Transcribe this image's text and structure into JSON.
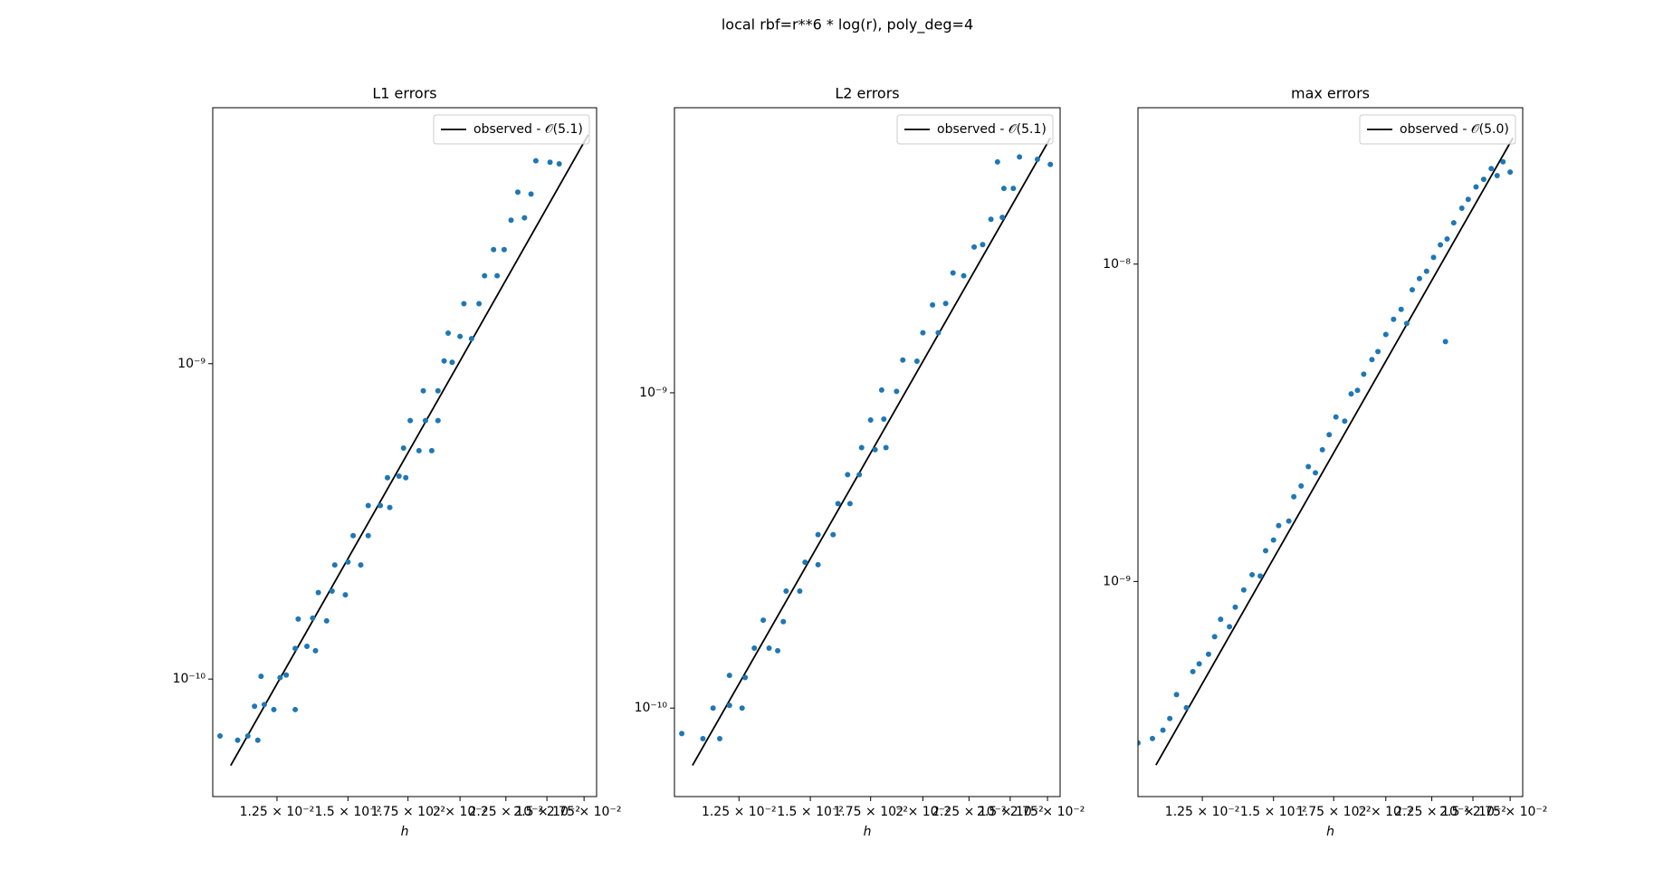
{
  "title": "local rbf=r**6 * log(r), poly_deg=4",
  "chart_data": [
    {
      "type": "scatter",
      "title": "L1 errors",
      "xlabel": "h",
      "xscale": "log",
      "yscale": "log",
      "xlim": [
        0.0106,
        0.0284
      ],
      "ylim": [
        4.24e-11,
        6.48e-09
      ],
      "xticks": [
        {
          "value": 0.0125,
          "label": "1.25 × 10⁻²"
        },
        {
          "value": 0.015,
          "label": "1.5 × 10⁻²"
        },
        {
          "value": 0.0175,
          "label": "1.75 × 10⁻²"
        },
        {
          "value": 0.02,
          "label": "2 × 10⁻²"
        },
        {
          "value": 0.0225,
          "label": "2.25 × 10⁻²"
        },
        {
          "value": 0.025,
          "label": "2.5 × 10⁻²"
        },
        {
          "value": 0.0275,
          "label": "2.75 × 10⁻²"
        }
      ],
      "yticks": [
        {
          "value": 1e-10,
          "label": "10⁻¹⁰"
        },
        {
          "value": 1e-09,
          "label": "10⁻⁹"
        }
      ],
      "legend": "upper right",
      "series": [
        {
          "name": "observed - 𝒪(5.1)",
          "style": "line",
          "color": "#000000",
          "x": [
            0.0111,
            0.0278
          ],
          "values": [
            5.32e-11,
            5.32e-09
          ]
        },
        {
          "style": "markers",
          "color": "#1f77b4",
          "x": [
            0.0108,
            0.0113,
            0.0116,
            0.0119,
            0.0118,
            0.0121,
            0.0124,
            0.012,
            0.0126,
            0.0128,
            0.0131,
            0.0131,
            0.0135,
            0.0138,
            0.0132,
            0.0137,
            0.0142,
            0.0139,
            0.0144,
            0.0149,
            0.0145,
            0.015,
            0.0155,
            0.0152,
            0.0158,
            0.0158,
            0.0163,
            0.0167,
            0.0166,
            0.0171,
            0.0174,
            0.0173,
            0.018,
            0.0186,
            0.0176,
            0.0183,
            0.0189,
            0.0182,
            0.0189,
            0.0192,
            0.0196,
            0.0194,
            0.02,
            0.0206,
            0.0202,
            0.021,
            0.0213,
            0.022,
            0.0218,
            0.0224,
            0.0228,
            0.0236,
            0.0232,
            0.024,
            0.0243,
            0.0252,
            0.0258
          ],
          "values": [
            6.6e-11,
            6.4e-11,
            6.6e-11,
            6.4e-11,
            8.2e-11,
            8.3e-11,
            8e-11,
            1.02e-10,
            1.01e-10,
            1.03e-10,
            8e-11,
            1.25e-10,
            1.27e-10,
            1.23e-10,
            1.55e-10,
            1.56e-10,
            1.53e-10,
            1.88e-10,
            1.9e-10,
            1.85e-10,
            2.3e-10,
            2.35e-10,
            2.3e-10,
            2.85e-10,
            2.85e-10,
            3.55e-10,
            3.55e-10,
            3.5e-10,
            4.35e-10,
            4.4e-10,
            4.35e-10,
            5.4e-10,
            5.3e-10,
            5.3e-10,
            6.6e-10,
            6.6e-10,
            6.6e-10,
            8.2e-10,
            8.2e-10,
            1.02e-09,
            1.01e-09,
            1.25e-09,
            1.22e-09,
            1.2e-09,
            1.55e-09,
            1.55e-09,
            1.9e-09,
            1.9e-09,
            2.3e-09,
            2.3e-09,
            2.85e-09,
            2.9e-09,
            3.5e-09,
            3.45e-09,
            4.4e-09,
            4.35e-09,
            4.3e-09
          ]
        }
      ]
    },
    {
      "type": "scatter",
      "title": "L2 errors",
      "xlabel": "h",
      "xscale": "log",
      "yscale": "log",
      "xlim": [
        0.0106,
        0.0284
      ],
      "ylim": [
        5.24e-11,
        8.02e-09
      ],
      "xticks": [
        {
          "value": 0.0125,
          "label": "1.25 × 10⁻²"
        },
        {
          "value": 0.015,
          "label": "1.5 × 10⁻²"
        },
        {
          "value": 0.0175,
          "label": "1.75 × 10⁻²"
        },
        {
          "value": 0.02,
          "label": "2 × 10⁻²"
        },
        {
          "value": 0.0225,
          "label": "2.25 × 10⁻²"
        },
        {
          "value": 0.025,
          "label": "2.5 × 10⁻²"
        },
        {
          "value": 0.0275,
          "label": "2.75 × 10⁻²"
        }
      ],
      "yticks": [
        {
          "value": 1e-10,
          "label": "10⁻¹⁰"
        },
        {
          "value": 1e-09,
          "label": "10⁻⁹"
        }
      ],
      "legend": "upper right",
      "series": [
        {
          "name": "observed - 𝒪(5.1)",
          "style": "line",
          "color": "#000000",
          "x": [
            0.0111,
            0.0277
          ],
          "values": [
            6.58e-11,
            6.43e-09
          ]
        },
        {
          "style": "markers",
          "color": "#1f77b4",
          "x": [
            0.0108,
            0.0114,
            0.0119,
            0.0117,
            0.0122,
            0.0126,
            0.0122,
            0.0127,
            0.013,
            0.0135,
            0.0138,
            0.0133,
            0.014,
            0.0141,
            0.0146,
            0.0148,
            0.0153,
            0.0153,
            0.0159,
            0.0161,
            0.0166,
            0.0165,
            0.017,
            0.0171,
            0.0177,
            0.0182,
            0.0175,
            0.0181,
            0.018,
            0.0187,
            0.019,
            0.0197,
            0.02,
            0.0208,
            0.0205,
            0.0212,
            0.0216,
            0.0222,
            0.0228,
            0.0233,
            0.0238,
            0.0245,
            0.0246,
            0.0252,
            0.0242,
            0.0256,
            0.0268,
            0.0277
          ],
          "values": [
            8.3e-11,
            8e-11,
            8e-11,
            1e-10,
            1.02e-10,
            1e-10,
            1.27e-10,
            1.25e-10,
            1.55e-10,
            1.55e-10,
            1.52e-10,
            1.9e-10,
            1.88e-10,
            2.35e-10,
            2.35e-10,
            2.9e-10,
            2.85e-10,
            3.55e-10,
            3.55e-10,
            4.45e-10,
            4.45e-10,
            5.5e-10,
            5.5e-10,
            6.7e-10,
            6.6e-10,
            6.7e-10,
            8.2e-10,
            8.25e-10,
            1.02e-09,
            1.01e-09,
            1.27e-09,
            1.26e-09,
            1.55e-09,
            1.55e-09,
            1.9e-09,
            1.92e-09,
            2.4e-09,
            2.35e-09,
            2.9e-09,
            2.95e-09,
            3.55e-09,
            3.6e-09,
            4.45e-09,
            4.45e-09,
            5.4e-09,
            5.6e-09,
            5.5e-09,
            5.3e-09
          ]
        }
      ]
    },
    {
      "type": "scatter",
      "title": "max errors",
      "xlabel": "h",
      "xscale": "log",
      "yscale": "log",
      "xlim": [
        0.0106,
        0.0284
      ],
      "ylim": [
        2.1e-10,
        3.11e-08
      ],
      "xticks": [
        {
          "value": 0.0125,
          "label": "1.25 × 10⁻²"
        },
        {
          "value": 0.015,
          "label": "1.5 × 10⁻²"
        },
        {
          "value": 0.0175,
          "label": "1.75 × 10⁻²"
        },
        {
          "value": 0.02,
          "label": "2 × 10⁻²"
        },
        {
          "value": 0.0225,
          "label": "2.25 × 10⁻²"
        },
        {
          "value": 0.025,
          "label": "2.5 × 10⁻²"
        },
        {
          "value": 0.0275,
          "label": "2.75 × 10⁻²"
        }
      ],
      "yticks": [
        {
          "value": 1e-09,
          "label": "10⁻⁹"
        },
        {
          "value": 1e-08,
          "label": "10⁻⁸"
        }
      ],
      "legend": "upper right",
      "series": [
        {
          "name": "observed - 𝒪(5.0)",
          "style": "line",
          "color": "#000000",
          "x": [
            0.0111,
            0.0277
          ],
          "values": [
            2.64e-10,
            2.5e-08
          ]
        },
        {
          "style": "markers",
          "color": "#1f77b4",
          "x": [
            0.0106,
            0.011,
            0.0113,
            0.0115,
            0.0117,
            0.012,
            0.0122,
            0.0124,
            0.0127,
            0.0129,
            0.0131,
            0.0134,
            0.0136,
            0.0139,
            0.0142,
            0.0145,
            0.0147,
            0.015,
            0.0152,
            0.0156,
            0.0158,
            0.0161,
            0.0164,
            0.0167,
            0.017,
            0.0173,
            0.0176,
            0.018,
            0.0183,
            0.0186,
            0.0189,
            0.0193,
            0.0196,
            0.02,
            0.0204,
            0.0208,
            0.0211,
            0.0214,
            0.0218,
            0.0222,
            0.0226,
            0.023,
            0.0234,
            0.0238,
            0.0243,
            0.0247,
            0.0252,
            0.0257,
            0.0262,
            0.0266,
            0.027,
            0.0275,
            0.0233
          ],
          "values": [
            3.1e-10,
            3.2e-10,
            3.4e-10,
            3.7e-10,
            4.4e-10,
            4e-10,
            5.2e-10,
            5.5e-10,
            5.9e-10,
            6.7e-10,
            7.6e-10,
            7.2e-10,
            8.3e-10,
            9.4e-10,
            1.05e-09,
            1.04e-09,
            1.25e-09,
            1.35e-09,
            1.5e-09,
            1.55e-09,
            1.85e-09,
            2e-09,
            2.3e-09,
            2.2e-09,
            2.6e-09,
            2.9e-09,
            3.3e-09,
            3.2e-09,
            3.9e-09,
            4e-09,
            4.5e-09,
            5e-09,
            5.3e-09,
            6e-09,
            6.7e-09,
            7.2e-09,
            6.5e-09,
            8.3e-09,
            9e-09,
            9.5e-09,
            1.05e-08,
            1.15e-08,
            1.2e-08,
            1.35e-08,
            1.5e-08,
            1.6e-08,
            1.75e-08,
            1.85e-08,
            2e-08,
            1.9e-08,
            2.1e-08,
            1.95e-08,
            5.7e-09
          ]
        }
      ]
    }
  ]
}
